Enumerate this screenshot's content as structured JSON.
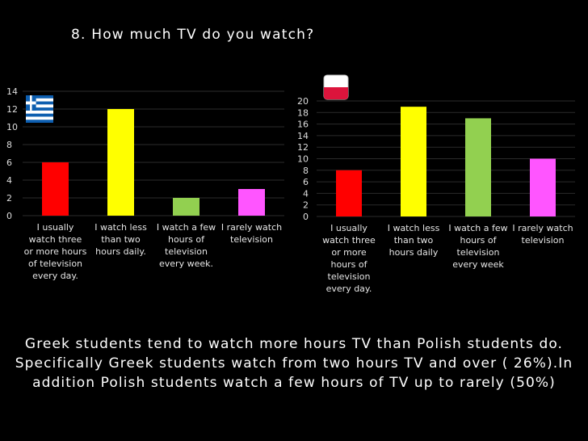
{
  "slide": {
    "title": "8. How much TV do you watch?",
    "summary": "Greek students tend to watch more hours TV than Polish students do. Specifically Greek students watch from  two hours TV and over ( 26%).In addition Polish students watch a few hours of TV up to rarely (50%)"
  },
  "flags": [
    {
      "country": "Greece",
      "icon": "greek-flag-icon",
      "colors": [
        "#0d5eaf",
        "#ffffff"
      ]
    },
    {
      "country": "Poland",
      "icon": "polish-flag-icon",
      "colors": [
        "#ffffff",
        "#dc143c"
      ]
    }
  ],
  "chart_data": [
    {
      "type": "bar",
      "title": "",
      "xlabel": "",
      "ylabel": "",
      "ylim": [
        0,
        14
      ],
      "yticks": [
        "0",
        "2",
        "4",
        "6",
        "8",
        "10",
        "12",
        "14"
      ],
      "grid": true,
      "categories": [
        "I usually watch three or more hours of television every day.",
        "I watch less than two hours daily.",
        "I watch a few hours of television every week.",
        "I rarely watch television"
      ],
      "category_lines": [
        [
          "I usually",
          "watch three",
          "or more hours",
          "of television",
          "every day."
        ],
        [
          "I watch less",
          "than two",
          "hours daily."
        ],
        [
          "I watch a few",
          "hours of",
          "television",
          "every week."
        ],
        [
          "I rarely watch",
          "television"
        ]
      ],
      "values": [
        6,
        12,
        2,
        3
      ],
      "colors": [
        "#ff0000",
        "#ffff00",
        "#92d050",
        "#ff55ff"
      ]
    },
    {
      "type": "bar",
      "title": "",
      "xlabel": "",
      "ylabel": "",
      "ylim": [
        0,
        20
      ],
      "yticks": [
        "0",
        "2",
        "4",
        "6",
        "8",
        "10",
        "12",
        "14",
        "16",
        "18",
        "20"
      ],
      "grid": true,
      "categories": [
        "I usually watch three or more hours of television every day.",
        "I watch less than two hours daily",
        "I watch a few hours of television every week",
        "I rarely watch television"
      ],
      "category_lines": [
        [
          "I usually",
          "watch three",
          "or more",
          "hours of",
          "television",
          "every day."
        ],
        [
          "I watch less",
          "than two",
          "hours daily"
        ],
        [
          "I watch a few",
          "hours of",
          "television",
          "every week"
        ],
        [
          "I rarely watch",
          "television"
        ]
      ],
      "values": [
        8,
        19,
        17,
        10
      ],
      "colors": [
        "#ff0000",
        "#ffff00",
        "#92d050",
        "#ff55ff"
      ]
    }
  ]
}
